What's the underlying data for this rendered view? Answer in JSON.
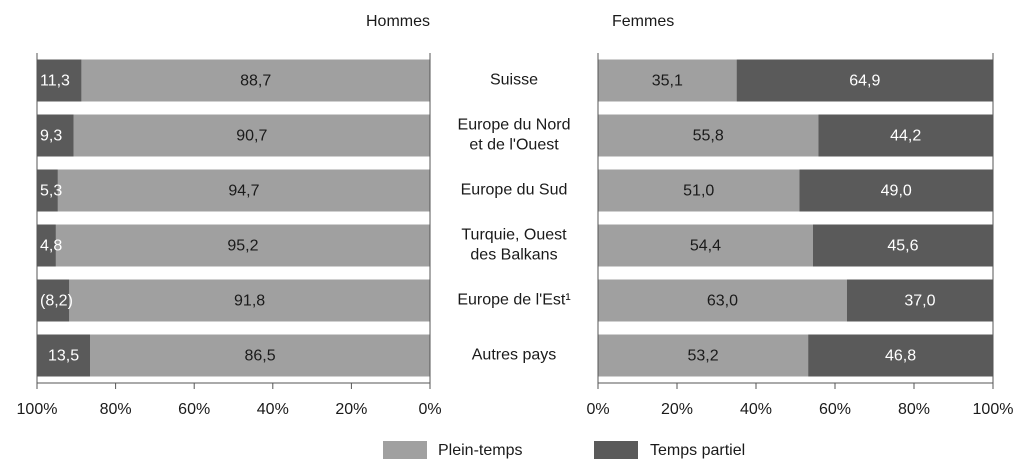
{
  "chart_data": [
    {
      "type": "bar",
      "title": "Hommes",
      "reversed": true,
      "categories": [
        "Suisse",
        "Europe du Nord\net de l'Ouest",
        "Europe du Sud",
        "Turquie, Ouest\ndes Balkans",
        "Europe de l'Est¹",
        "Autres pays"
      ],
      "series": [
        {
          "name": "Plein-temps",
          "color": "#a0a0a0",
          "values": [
            88.7,
            90.7,
            94.7,
            95.2,
            91.8,
            86.5
          ],
          "value_labels": [
            "88,7",
            "90,7",
            "94,7",
            "95,2",
            "91,8",
            "86,5"
          ]
        },
        {
          "name": "Temps partiel",
          "color": "#5a5a5a",
          "values": [
            11.3,
            9.3,
            5.3,
            4.8,
            8.2,
            13.5
          ],
          "value_labels": [
            "11,3",
            "9,3",
            "5,3",
            "4,8",
            "(8,2)",
            "13,5"
          ]
        }
      ],
      "xlim": [
        0,
        100
      ],
      "xticks": [
        {
          "value": 100,
          "label": "100%"
        },
        {
          "value": 80,
          "label": "80%"
        },
        {
          "value": 60,
          "label": "60%"
        },
        {
          "value": 40,
          "label": "40%"
        },
        {
          "value": 20,
          "label": "20%"
        },
        {
          "value": 0,
          "label": "0%"
        }
      ]
    },
    {
      "type": "bar",
      "title": "Femmes",
      "reversed": false,
      "series": [
        {
          "color": "#a0a0a0",
          "values": [
            35.1,
            55.8,
            51.0,
            54.4,
            63.0,
            53.2
          ],
          "value_labels": [
            "35,1",
            "55,8",
            "51,0",
            "54,4",
            "63,0",
            "53,2"
          ]
        },
        {
          "color": "#5a5a5a",
          "values": [
            64.9,
            44.2,
            49.0,
            45.6,
            37.0,
            46.8
          ],
          "value_labels": [
            "64,9",
            "44,2",
            "49,0",
            "45,6",
            "37,0",
            "46,8"
          ]
        }
      ],
      "xlim": [
        0,
        100
      ],
      "xticks": [
        {
          "value": 0,
          "label": "0%"
        },
        {
          "value": 20,
          "label": "20%"
        },
        {
          "value": 40,
          "label": "40%"
        },
        {
          "value": 60,
          "label": "60%"
        },
        {
          "value": 80,
          "label": "80%"
        },
        {
          "value": 100,
          "label": "100%"
        }
      ]
    }
  ]
}
